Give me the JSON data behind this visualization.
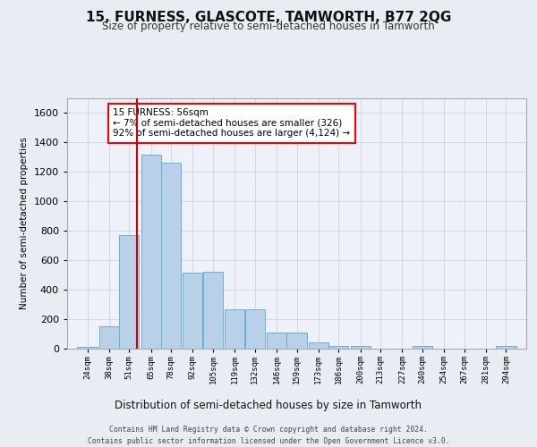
{
  "title": "15, FURNESS, GLASCOTE, TAMWORTH, B77 2QG",
  "subtitle": "Size of property relative to semi-detached houses in Tamworth",
  "xlabel": "Distribution of semi-detached houses by size in Tamworth",
  "ylabel": "Number of semi-detached properties",
  "footer_line1": "Contains HM Land Registry data © Crown copyright and database right 2024.",
  "footer_line2": "Contains public sector information licensed under the Open Government Licence v3.0.",
  "bar_color": "#b8d0e8",
  "bar_edge_color": "#6baed6",
  "background_color": "#e8edf4",
  "plot_bg_color": "#eef2f8",
  "annotation_text": "15 FURNESS: 56sqm\n← 7% of semi-detached houses are smaller (326)\n92% of semi-detached houses are larger (4,124) →",
  "vline_x": 56,
  "vline_color": "#cc0000",
  "categories": [
    "24sqm",
    "38sqm",
    "51sqm",
    "65sqm",
    "78sqm",
    "92sqm",
    "105sqm",
    "119sqm",
    "132sqm",
    "146sqm",
    "159sqm",
    "173sqm",
    "186sqm",
    "200sqm",
    "213sqm",
    "227sqm",
    "240sqm",
    "254sqm",
    "267sqm",
    "281sqm",
    "294sqm"
  ],
  "bin_centers": [
    24,
    38,
    51,
    65,
    78,
    92,
    105,
    119,
    132,
    146,
    159,
    173,
    186,
    200,
    213,
    227,
    240,
    254,
    267,
    281,
    294
  ],
  "bin_width": 13,
  "values": [
    10,
    150,
    770,
    1320,
    1260,
    515,
    520,
    270,
    265,
    110,
    110,
    40,
    18,
    18,
    0,
    0,
    18,
    0,
    0,
    0,
    18
  ],
  "ylim": [
    0,
    1700
  ],
  "yticks": [
    0,
    200,
    400,
    600,
    800,
    1000,
    1200,
    1400,
    1600
  ]
}
